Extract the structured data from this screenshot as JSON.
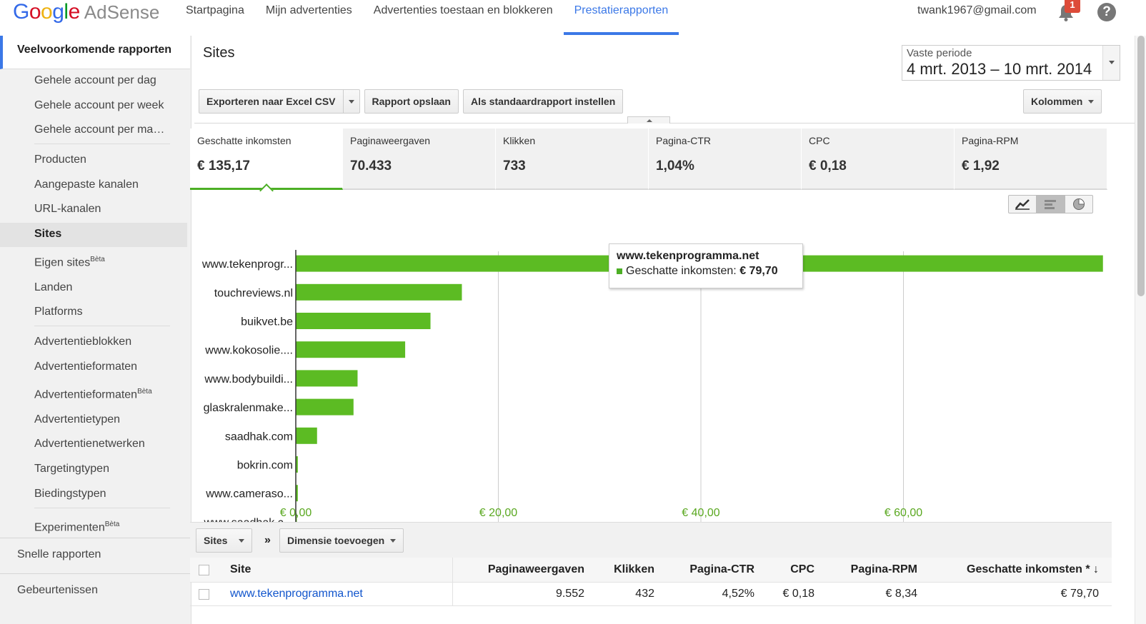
{
  "brand": {
    "google": [
      "G",
      "o",
      "o",
      "g",
      "l",
      "e"
    ],
    "product": "AdSense"
  },
  "nav": [
    {
      "label": "Startpagina"
    },
    {
      "label": "Mijn advertenties"
    },
    {
      "label": "Advertenties toestaan en blokkeren"
    },
    {
      "label": "Prestatierapporten",
      "active": true
    }
  ],
  "user": {
    "email": "twank1967@gmail.com",
    "notifications": "1",
    "help": "?"
  },
  "sidebar": {
    "header": "Veelvoorkomende rapporten",
    "items": [
      {
        "label": "Gehele account per dag"
      },
      {
        "label": "Gehele account per week"
      },
      {
        "label": "Gehele account per ma…"
      },
      {
        "label": "Producten"
      },
      {
        "label": "Aangepaste kanalen"
      },
      {
        "label": "URL-kanalen"
      },
      {
        "label": "Sites",
        "selected": true
      },
      {
        "label": "Eigen sites",
        "beta": "Bèta"
      },
      {
        "label": "Landen"
      },
      {
        "label": "Platforms"
      },
      {
        "label": "Advertentieblokken"
      },
      {
        "label": "Advertentieformaten"
      },
      {
        "label": "Advertentieformaten",
        "beta": "Bèta"
      },
      {
        "label": "Advertentietypen"
      },
      {
        "label": "Advertentienetwerken"
      },
      {
        "label": "Targetingtypen"
      },
      {
        "label": "Biedingstypen"
      },
      {
        "label": "Experimenten",
        "beta": "Bèta"
      }
    ],
    "footer": [
      "Snelle rapporten",
      "Gebeurtenissen"
    ]
  },
  "page": {
    "title": "Sites",
    "period_label": "Vaste periode",
    "period_value": "4 mrt. 2013 – 10 mrt. 2014"
  },
  "toolbar": {
    "export": "Exporteren naar Excel CSV",
    "save": "Rapport opslaan",
    "default": "Als standaardrapport instellen",
    "columns": "Kolommen"
  },
  "metrics": [
    {
      "label": "Geschatte inkomsten",
      "value": "€ 135,17",
      "selected": true
    },
    {
      "label": "Paginaweergaven",
      "value": "70.433"
    },
    {
      "label": "Klikken",
      "value": "733"
    },
    {
      "label": "Pagina-CTR",
      "value": "1,04%"
    },
    {
      "label": "CPC",
      "value": "€ 0,18"
    },
    {
      "label": "Pagina-RPM",
      "value": "€ 1,92"
    }
  ],
  "chart_icons": [
    "line-chart-icon",
    "bar-chart-icon",
    "pie-chart-icon"
  ],
  "chart_data": {
    "type": "bar",
    "orientation": "horizontal",
    "categories": [
      "www.tekenprogr...",
      "touchreviews.nl",
      "buikvet.be",
      "www.kokosolie....",
      "www.bodybuildi...",
      "glaskralenmake...",
      "saadhak.com",
      "bokrin.com",
      "www.cameraso...",
      "www.saadhak.c..."
    ],
    "values": [
      79.7,
      16.4,
      13.3,
      10.8,
      6.1,
      5.7,
      2.1,
      0.2,
      0.2,
      0.1
    ],
    "xlim": [
      0,
      80
    ],
    "x_ticks": [
      "€ 0,00",
      "€ 20,00",
      "€ 40,00",
      "€ 60,00"
    ],
    "x_tick_values": [
      0,
      20,
      40,
      60
    ],
    "bar_color": "#5cbb23",
    "grid": true
  },
  "tooltip": {
    "title": "www.tekenprogramma.net",
    "series": "Geschatte inkomsten:",
    "value": "€ 79,70"
  },
  "dimensions": {
    "primary": "Sites",
    "separator": "»",
    "add": "Dimensie toevoegen"
  },
  "table": {
    "headers": [
      "Site",
      "Paginaweergaven",
      "Klikken",
      "Pagina-CTR",
      "CPC",
      "Pagina-RPM",
      "Geschatte inkomsten * ↓"
    ],
    "rows": [
      [
        "www.tekenprogramma.net",
        "9.552",
        "432",
        "4,52%",
        "€ 0,18",
        "€ 8,34",
        "€ 79,70"
      ]
    ]
  }
}
